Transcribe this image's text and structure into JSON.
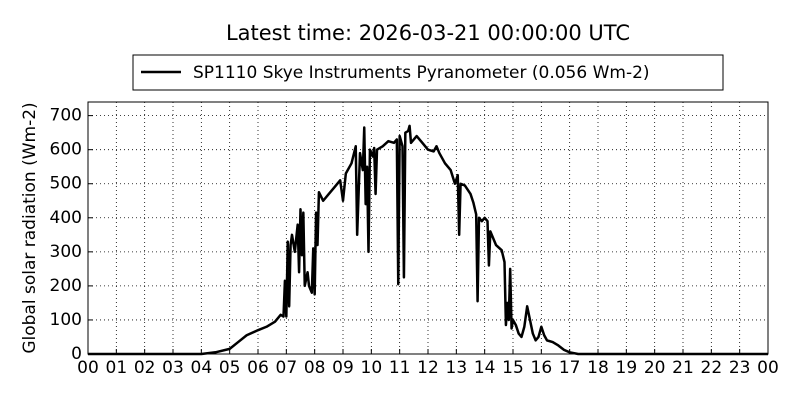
{
  "chart_data": {
    "type": "line",
    "title": "Latest time: 2026-03-21 00:00:00 UTC",
    "y_label": "Global solar radiation (Wm-2)",
    "x": [
      0,
      4.0,
      4.5,
      5.0,
      5.3,
      5.6,
      6.0,
      6.3,
      6.6,
      6.8,
      6.9,
      6.95,
      7.0,
      7.05,
      7.1,
      7.15,
      7.2,
      7.3,
      7.4,
      7.45,
      7.5,
      7.55,
      7.6,
      7.65,
      7.75,
      7.8,
      7.9,
      7.95,
      8.0,
      8.05,
      8.1,
      8.15,
      8.3,
      8.5,
      8.7,
      8.9,
      9.0,
      9.1,
      9.3,
      9.45,
      9.5,
      9.6,
      9.7,
      9.75,
      9.8,
      9.85,
      9.9,
      9.95,
      10.05,
      10.1,
      10.15,
      10.2,
      10.4,
      10.6,
      10.8,
      10.9,
      10.95,
      11.0,
      11.1,
      11.15,
      11.2,
      11.3,
      11.35,
      11.4,
      11.6,
      11.8,
      12.0,
      12.2,
      12.3,
      12.4,
      12.6,
      12.8,
      12.95,
      13.05,
      13.1,
      13.15,
      13.3,
      13.5,
      13.6,
      13.7,
      13.75,
      13.8,
      13.9,
      14.0,
      14.1,
      14.15,
      14.2,
      14.4,
      14.6,
      14.7,
      14.75,
      14.8,
      14.85,
      14.9,
      14.95,
      15.0,
      15.1,
      15.2,
      15.3,
      15.4,
      15.5,
      15.6,
      15.7,
      15.8,
      15.9,
      16.0,
      16.1,
      16.2,
      16.4,
      16.6,
      16.8,
      17.0,
      17.3,
      24
    ],
    "series": [
      {
        "name": "SP1110 Skye Instruments Pyranometer (0.056 Wm-2)",
        "color": "#000000",
        "values": [
          0,
          0,
          5,
          15,
          35,
          55,
          70,
          80,
          95,
          115,
          110,
          215,
          110,
          330,
          140,
          320,
          350,
          300,
          380,
          240,
          425,
          290,
          415,
          200,
          240,
          200,
          180,
          310,
          175,
          415,
          320,
          475,
          450,
          470,
          490,
          510,
          450,
          530,
          560,
          610,
          350,
          590,
          540,
          665,
          440,
          550,
          300,
          600,
          580,
          605,
          470,
          600,
          610,
          625,
          620,
          630,
          205,
          640,
          610,
          225,
          650,
          655,
          670,
          620,
          640,
          620,
          600,
          595,
          610,
          590,
          560,
          540,
          500,
          525,
          350,
          500,
          495,
          470,
          445,
          410,
          155,
          400,
          390,
          400,
          390,
          260,
          360,
          320,
          305,
          270,
          85,
          150,
          100,
          250,
          75,
          100,
          85,
          60,
          50,
          80,
          140,
          100,
          60,
          40,
          50,
          80,
          55,
          40,
          35,
          25,
          12,
          5,
          0,
          0
        ]
      }
    ],
    "xlim": [
      0,
      24
    ],
    "xticks": [
      {
        "value": 0,
        "label": "00"
      },
      {
        "value": 1,
        "label": "01"
      },
      {
        "value": 2,
        "label": "02"
      },
      {
        "value": 3,
        "label": "03"
      },
      {
        "value": 4,
        "label": "04"
      },
      {
        "value": 5,
        "label": "05"
      },
      {
        "value": 6,
        "label": "06"
      },
      {
        "value": 7,
        "label": "07"
      },
      {
        "value": 8,
        "label": "08"
      },
      {
        "value": 9,
        "label": "09"
      },
      {
        "value": 10,
        "label": "10"
      },
      {
        "value": 11,
        "label": "11"
      },
      {
        "value": 12,
        "label": "12"
      },
      {
        "value": 13,
        "label": "13"
      },
      {
        "value": 14,
        "label": "14"
      },
      {
        "value": 15,
        "label": "15"
      },
      {
        "value": 16,
        "label": "16"
      },
      {
        "value": 17,
        "label": "17"
      },
      {
        "value": 18,
        "label": "18"
      },
      {
        "value": 19,
        "label": "19"
      },
      {
        "value": 20,
        "label": "20"
      },
      {
        "value": 21,
        "label": "21"
      },
      {
        "value": 22,
        "label": "22"
      },
      {
        "value": 23,
        "label": "23"
      },
      {
        "value": 24,
        "label": "00"
      }
    ],
    "ylim": [
      0,
      740
    ],
    "yticks": [
      0,
      100,
      200,
      300,
      400,
      500,
      600,
      700
    ],
    "grid": true,
    "legend": "top"
  }
}
